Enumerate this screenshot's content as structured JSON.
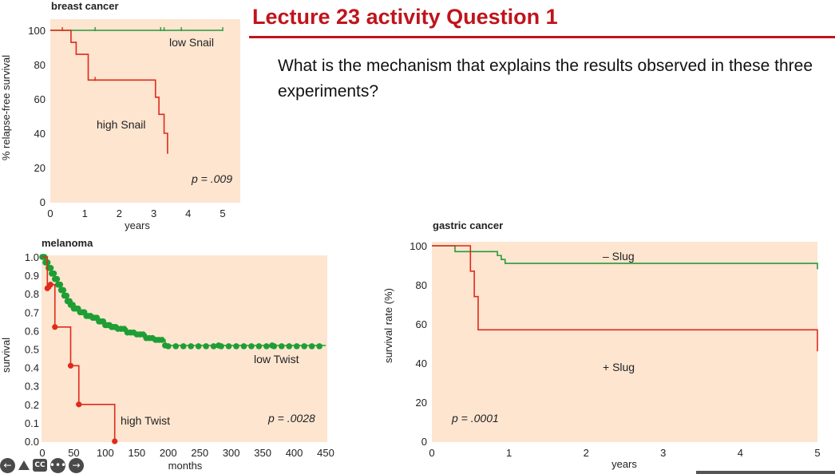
{
  "slide": {
    "title": "Lecture 23 activity Question 1",
    "question": "What is the mechanism that explains the results observed in these three experiments?"
  },
  "colors": {
    "title": "#c0141b",
    "panel_bg": "#fde5d0",
    "green": "#2a9a3a",
    "red": "#e02a1a",
    "dot_green": "#1e9e34"
  },
  "toolbar": {
    "icons": [
      "back-arrow-icon",
      "annotate-icon",
      "closed-captions-icon",
      "more-options-icon",
      "forward-arrow-icon"
    ],
    "cc_label": "CC"
  },
  "chart_data": [
    {
      "type": "line",
      "subtype": "kaplan-meier step",
      "title": "breast cancer",
      "xlabel": "years",
      "ylabel": "% relapse-free survival",
      "xlim": [
        0,
        5
      ],
      "ylim": [
        0,
        100
      ],
      "xticks": [
        0,
        1,
        2,
        3,
        4,
        5
      ],
      "yticks": [
        0,
        20,
        40,
        60,
        80,
        100
      ],
      "annotation": "p = .009",
      "series": [
        {
          "name": "low Snail",
          "color": "green",
          "x": [
            0,
            5
          ],
          "y": [
            100,
            100
          ],
          "censor_x": [
            1.3,
            3.2,
            3.3,
            3.8,
            5.0
          ]
        },
        {
          "name": "high Snail",
          "color": "red",
          "x": [
            0,
            0.6,
            0.75,
            1.1,
            2.7,
            3.05,
            3.15,
            3.3,
            3.4
          ],
          "y": [
            100,
            93,
            86,
            71,
            71,
            61,
            51,
            40,
            28
          ],
          "censor_x": [
            0.35,
            1.3
          ]
        }
      ]
    },
    {
      "type": "line",
      "subtype": "kaplan-meier step",
      "title": "melanoma",
      "xlabel": "months",
      "ylabel": "survival",
      "xlim": [
        0,
        450
      ],
      "ylim": [
        0,
        1.0
      ],
      "xticks": [
        0,
        50,
        100,
        150,
        200,
        250,
        300,
        350,
        400,
        450
      ],
      "ytick_labels": [
        "0.0",
        "0.1",
        "0.2",
        "0.3",
        "0.4",
        "0.5",
        "0.6",
        "0.7",
        "0.8",
        "0.9",
        "1.0"
      ],
      "annotation": "p = .0028",
      "series": [
        {
          "name": "low Twist",
          "color": "green",
          "x": [
            0,
            5,
            10,
            15,
            20,
            25,
            30,
            35,
            40,
            45,
            50,
            60,
            70,
            80,
            90,
            100,
            110,
            120,
            135,
            150,
            165,
            180,
            195,
            450
          ],
          "y": [
            1.0,
            0.97,
            0.94,
            0.91,
            0.88,
            0.85,
            0.82,
            0.79,
            0.76,
            0.74,
            0.72,
            0.7,
            0.68,
            0.67,
            0.65,
            0.63,
            0.62,
            0.61,
            0.59,
            0.58,
            0.56,
            0.55,
            0.52,
            0.52
          ]
        },
        {
          "name": "high Twist",
          "color": "red",
          "x": [
            0,
            8,
            13,
            20,
            45,
            58,
            115
          ],
          "y": [
            1.0,
            0.83,
            0.85,
            0.62,
            0.41,
            0.2,
            0.0
          ]
        }
      ]
    },
    {
      "type": "line",
      "subtype": "kaplan-meier step",
      "title": "gastric cancer",
      "xlabel": "years",
      "ylabel": "survival rate (%)",
      "xlim": [
        0,
        5
      ],
      "ylim": [
        0,
        100
      ],
      "xticks": [
        0,
        1,
        2,
        3,
        4,
        5
      ],
      "yticks": [
        0,
        20,
        40,
        60,
        80,
        100
      ],
      "annotation": "p = .0001",
      "series": [
        {
          "name": "– Slug",
          "color": "green",
          "x": [
            0,
            0.25,
            0.3,
            0.7,
            0.85,
            0.9,
            0.95,
            1.65,
            5.0
          ],
          "y": [
            100,
            100,
            97,
            97,
            95,
            93,
            91,
            91,
            88
          ]
        },
        {
          "name": "+ Slug",
          "color": "red",
          "x": [
            0,
            0.45,
            0.5,
            0.55,
            0.6,
            1.5,
            5.0
          ],
          "y": [
            100,
            100,
            87,
            74,
            57,
            57,
            46
          ]
        }
      ]
    }
  ]
}
